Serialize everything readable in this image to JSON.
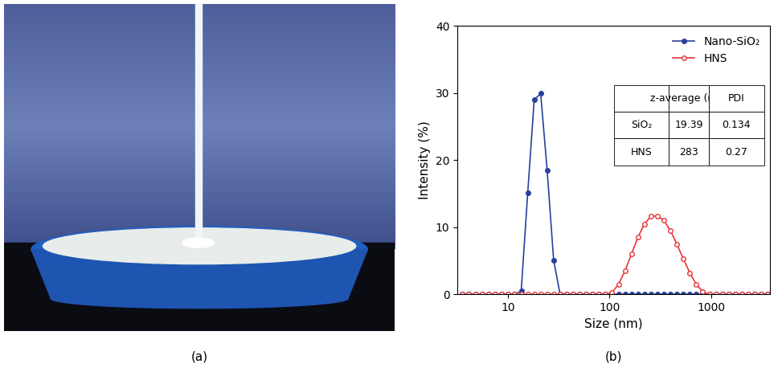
{
  "panel_labels": [
    "(a)",
    "(b)"
  ],
  "chart_data": {
    "type": "line",
    "x_label": "Size (nm)",
    "y_label": "Intensity (%)",
    "log": "x",
    "xlim": [
      3.2,
      3800
    ],
    "xticks": [
      10,
      100,
      1000
    ],
    "ylim": [
      0,
      40
    ],
    "yticks": [
      0,
      10,
      20,
      30,
      40
    ],
    "legend": "upper right",
    "x": [
      3.58,
      4.145,
      4.801,
      5.56,
      6.439,
      7.456,
      8.635,
      10.0,
      11.58,
      13.54,
      15.69,
      18.17,
      21.04,
      24.36,
      28.21,
      32.67,
      37.84,
      43.82,
      50.75,
      58.77,
      68.06,
      78.82,
      91.28,
      105.7,
      122.4,
      141.8,
      164.2,
      190.1,
      220.2,
      255.0,
      295.3,
      342.0,
      396.1,
      458.7,
      531.2,
      615.1,
      712.4,
      825.0,
      955.4,
      1106,
      1281,
      1484,
      1718,
      1990,
      2305,
      2669,
      3090,
      3580
    ],
    "series": [
      {
        "name": "Nano-SiO₂",
        "color": "#2a3f9d",
        "marker": "filled_circle",
        "line_style": "solid",
        "values": [
          0,
          0,
          0,
          0,
          0,
          0,
          0,
          0,
          0,
          0.5,
          15.1,
          29.0,
          29.9,
          18.5,
          5.1,
          0,
          0,
          0,
          0,
          0,
          0,
          0,
          0,
          0,
          0,
          0,
          0,
          0,
          0,
          0,
          0,
          0,
          0,
          0,
          0,
          0,
          0,
          0,
          0,
          0,
          0,
          0,
          0,
          0,
          0,
          0,
          0,
          0
        ]
      },
      {
        "name": "HNS",
        "color": "#e8363a",
        "marker": "open_circle",
        "line_style": "solid",
        "values": [
          0,
          0,
          0,
          0,
          0,
          0,
          0,
          0,
          0,
          0,
          0,
          0,
          0,
          0,
          0,
          0,
          0,
          0,
          0,
          0,
          0,
          0,
          0,
          0.3,
          1.5,
          3.5,
          6.0,
          8.5,
          10.5,
          11.6,
          11.7,
          11.0,
          9.5,
          7.5,
          5.3,
          3.2,
          1.5,
          0.4,
          0,
          0,
          0,
          0,
          0,
          0,
          0,
          0,
          0,
          0
        ]
      }
    ],
    "table": {
      "columns": [
        "z-average (nm)",
        "PDI"
      ],
      "rows": [
        [
          "SiO₂",
          19.39,
          0.134
        ],
        [
          "HNS",
          283,
          0.27
        ]
      ]
    }
  }
}
